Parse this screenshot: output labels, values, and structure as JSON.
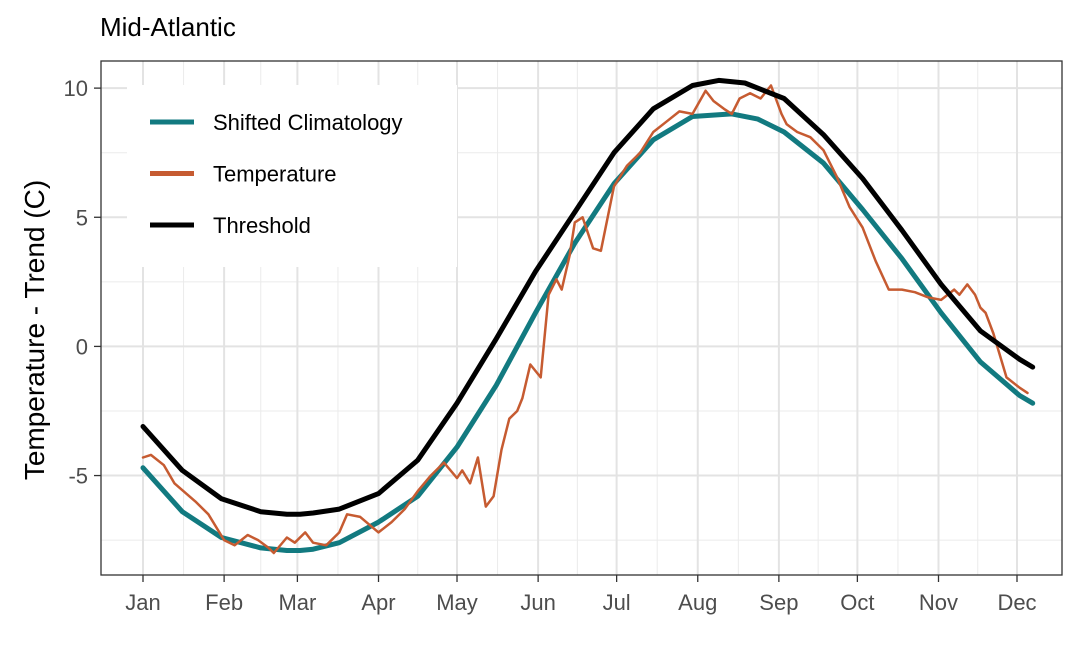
{
  "chart_data": {
    "type": "line",
    "title": "Mid-Atlantic",
    "xlabel": "",
    "ylabel": "Temperature - Trend (C)",
    "xlim": [
      0,
      340
    ],
    "ylim": [
      -8.85,
      11.05
    ],
    "x_ticks": [
      {
        "day": 0,
        "label": "Jan"
      },
      {
        "day": 31,
        "label": "Feb"
      },
      {
        "day": 59,
        "label": "Mar"
      },
      {
        "day": 90,
        "label": "Apr"
      },
      {
        "day": 120,
        "label": "May"
      },
      {
        "day": 151,
        "label": "Jun"
      },
      {
        "day": 181,
        "label": "Jul"
      },
      {
        "day": 212,
        "label": "Aug"
      },
      {
        "day": 243,
        "label": "Sep"
      },
      {
        "day": 273,
        "label": "Oct"
      },
      {
        "day": 304,
        "label": "Nov"
      },
      {
        "day": 334,
        "label": "Dec"
      }
    ],
    "y_ticks": [
      -5,
      0,
      5,
      10
    ],
    "grid": true,
    "legend_position": "top-left",
    "series": [
      {
        "name": "Shifted Climatology",
        "color": "#127a80",
        "x": [
          0,
          15,
          30,
          45,
          55,
          60,
          65,
          75,
          90,
          105,
          120,
          135,
          150,
          165,
          180,
          195,
          210,
          225,
          235,
          245,
          260,
          275,
          290,
          305,
          320,
          335,
          340
        ],
        "y": [
          -4.7,
          -6.4,
          -7.4,
          -7.8,
          -7.9,
          -7.9,
          -7.85,
          -7.6,
          -6.8,
          -5.8,
          -3.9,
          -1.5,
          1.3,
          4.0,
          6.3,
          8.0,
          8.9,
          9.0,
          8.8,
          8.3,
          7.1,
          5.3,
          3.4,
          1.3,
          -0.6,
          -1.9,
          -2.2
        ]
      },
      {
        "name": "Temperature",
        "color": "#c65b31",
        "x": [
          0,
          3,
          8,
          12,
          20,
          25,
          31,
          35,
          40,
          44,
          48,
          50,
          55,
          58,
          62,
          65,
          70,
          75,
          78,
          83,
          90,
          95,
          100,
          105,
          110,
          115,
          120,
          122,
          125,
          128,
          131,
          134,
          137,
          140,
          143,
          145,
          148,
          152,
          155,
          158,
          160,
          163,
          165,
          168,
          172,
          175,
          180,
          185,
          190,
          195,
          200,
          205,
          210,
          215,
          218,
          222,
          225,
          228,
          232,
          236,
          240,
          244,
          246,
          250,
          255,
          260,
          265,
          270,
          275,
          280,
          285,
          290,
          295,
          300,
          305,
          310,
          312,
          315,
          318,
          320,
          322,
          325,
          330,
          335,
          338
        ],
        "y": [
          -4.3,
          -4.2,
          -4.6,
          -5.3,
          -6.0,
          -6.5,
          -7.5,
          -7.7,
          -7.3,
          -7.5,
          -7.8,
          -8.0,
          -7.4,
          -7.6,
          -7.2,
          -7.6,
          -7.7,
          -7.2,
          -6.5,
          -6.6,
          -7.2,
          -6.8,
          -6.3,
          -5.6,
          -5.0,
          -4.5,
          -5.1,
          -4.8,
          -5.3,
          -4.3,
          -6.2,
          -5.8,
          -4.0,
          -2.8,
          -2.5,
          -2.0,
          -0.7,
          -1.2,
          2.0,
          2.6,
          2.2,
          3.5,
          4.8,
          5.0,
          3.8,
          3.7,
          6.2,
          7.0,
          7.5,
          8.3,
          8.7,
          9.1,
          9.0,
          9.9,
          9.5,
          9.2,
          9.0,
          9.6,
          9.8,
          9.6,
          10.1,
          9.0,
          8.6,
          8.3,
          8.1,
          7.6,
          6.6,
          5.4,
          4.6,
          3.3,
          2.2,
          2.2,
          2.1,
          1.9,
          1.8,
          2.2,
          2.0,
          2.4,
          2.0,
          1.5,
          1.3,
          0.5,
          -1.2,
          -1.6,
          -1.8
        ]
      },
      {
        "name": "Threshold",
        "color": "#000000",
        "x": [
          0,
          15,
          30,
          45,
          55,
          60,
          65,
          75,
          90,
          105,
          120,
          135,
          150,
          165,
          180,
          195,
          210,
          220,
          230,
          245,
          260,
          275,
          290,
          305,
          320,
          335,
          340
        ],
        "y": [
          -3.1,
          -4.8,
          -5.9,
          -6.4,
          -6.5,
          -6.5,
          -6.45,
          -6.3,
          -5.7,
          -4.4,
          -2.2,
          0.3,
          2.9,
          5.2,
          7.5,
          9.2,
          10.1,
          10.3,
          10.2,
          9.6,
          8.2,
          6.5,
          4.5,
          2.4,
          0.6,
          -0.5,
          -0.8
        ]
      }
    ]
  }
}
